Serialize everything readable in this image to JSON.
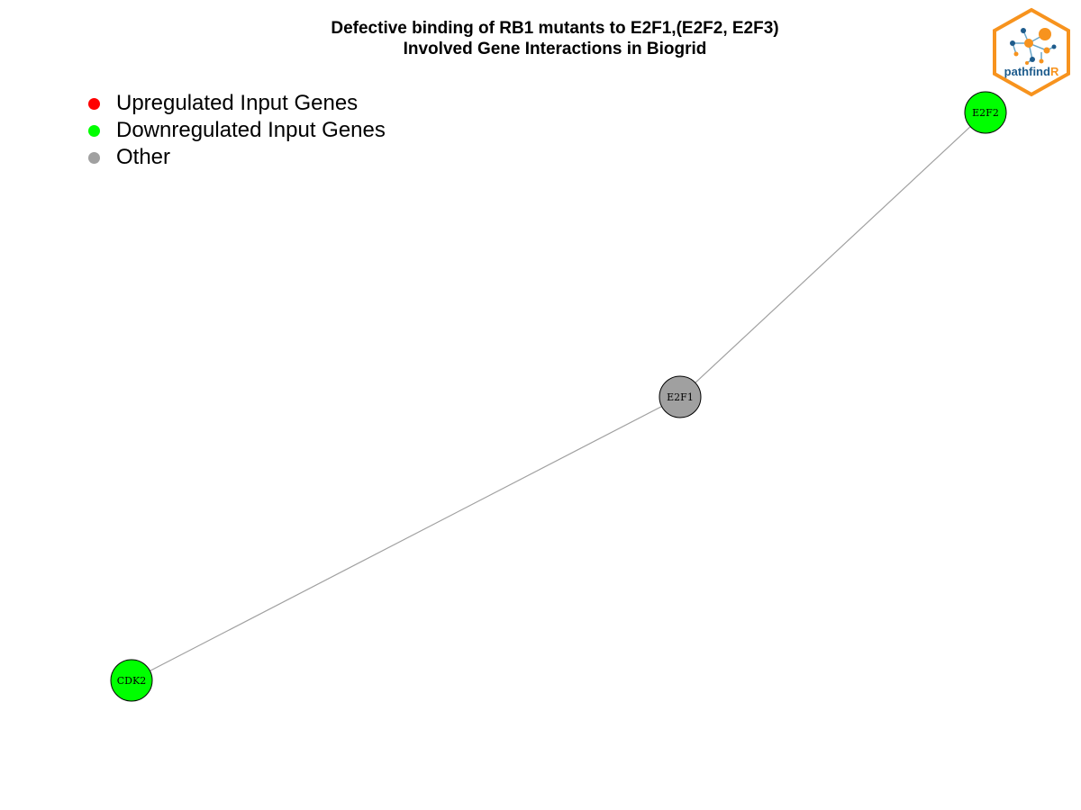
{
  "title": {
    "line1": "Defective binding of RB1 mutants to E2F1,(E2F2, E2F3)",
    "line2": "Involved Gene Interactions in Biogrid"
  },
  "legend": {
    "items": [
      {
        "label": "Upregulated Input Genes",
        "color": "#ff0000"
      },
      {
        "label": "Downregulated Input Genes",
        "color": "#00ff00"
      },
      {
        "label": "Other",
        "color": "#a0a0a0"
      }
    ]
  },
  "network": {
    "nodes": [
      {
        "id": "E2F2",
        "label": "E2F2",
        "category": "downregulated",
        "color": "#00ff00"
      },
      {
        "id": "E2F1",
        "label": "E2F1",
        "category": "other",
        "color": "#a0a0a0"
      },
      {
        "id": "CDK2",
        "label": "CDK2",
        "category": "downregulated",
        "color": "#00ff00"
      }
    ],
    "edges": [
      {
        "source": "E2F1",
        "target": "E2F2"
      },
      {
        "source": "E2F1",
        "target": "CDK2"
      }
    ],
    "edge_color": "#a0a0a0"
  },
  "logo": {
    "text_main": "pathfind",
    "text_accent": "R",
    "border_color": "#f7931e",
    "text_color": "#1d5b8c",
    "accent_color": "#f7931e"
  }
}
